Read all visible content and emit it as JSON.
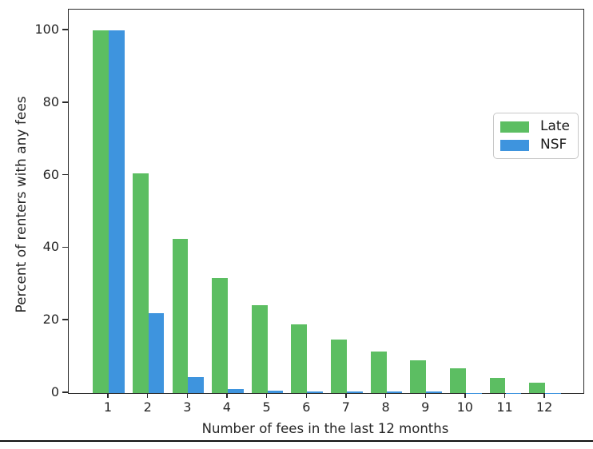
{
  "chart_data": {
    "type": "bar",
    "title": "",
    "xlabel": "Number of fees in the last 12 months",
    "ylabel": "Percent of renters with any fees",
    "categories": [
      "1",
      "2",
      "3",
      "4",
      "5",
      "6",
      "7",
      "8",
      "9",
      "10",
      "11",
      "12"
    ],
    "series": [
      {
        "name": "Late",
        "color": "#5cbe62",
        "values": [
          100,
          60.5,
          42.4,
          31.8,
          24.3,
          18.9,
          14.8,
          11.5,
          9.0,
          6.8,
          4.2,
          2.8
        ]
      },
      {
        "name": "NSF",
        "color": "#3e94de",
        "values": [
          100,
          22.1,
          4.4,
          1.2,
          0.7,
          0.4,
          0.4,
          0.4,
          0.4,
          0.1,
          0.05,
          0.02
        ]
      }
    ],
    "ylim": [
      0,
      105.7
    ],
    "yticks": [
      0,
      20,
      40,
      60,
      80,
      100
    ],
    "grid": false,
    "legend_position": "upper right inside",
    "bar_layout": "grouped"
  }
}
